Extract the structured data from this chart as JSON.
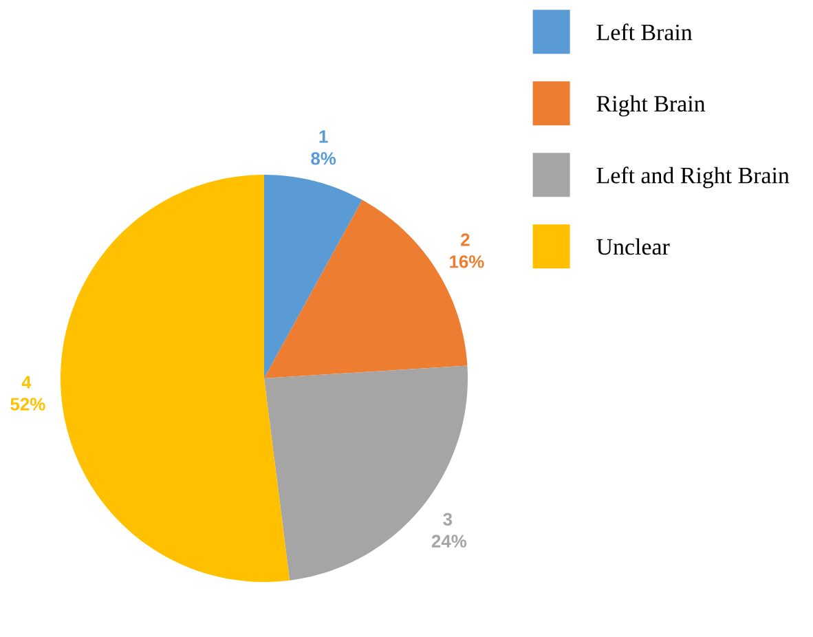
{
  "chart_data": {
    "type": "pie",
    "categories": [
      "Left Brain",
      "Right Brain",
      "Left and Right Brain",
      "Unclear"
    ],
    "values": [
      8,
      16,
      24,
      52
    ],
    "colors": [
      "#5b9bd5",
      "#ed7d31",
      "#a5a5a5",
      "#ffc000"
    ],
    "value_labels": [
      "1 8%",
      "2 16%",
      "3 24%",
      "4 52%"
    ],
    "legend": "right"
  }
}
